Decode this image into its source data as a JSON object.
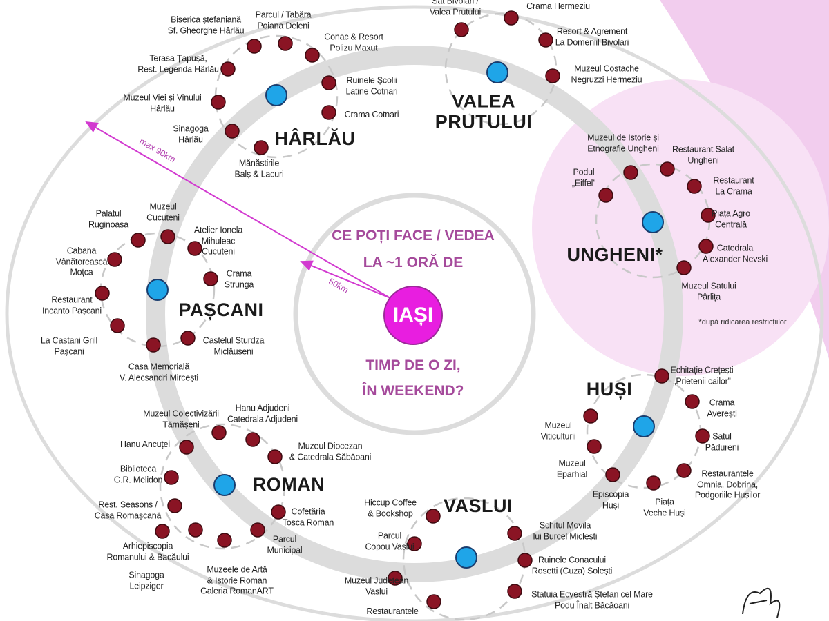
{
  "center": {
    "lines": [
      "CE POȚI FACE / VEDEA",
      "LA ~1 ORĂ DE"
    ],
    "city": "IAȘI",
    "question": [
      "TIMP DE O ZI,",
      "ÎN WEEKEND?"
    ]
  },
  "distances": {
    "max": "max 90km",
    "near": "50km"
  },
  "footnote": "*după ridicarea restricțiilor",
  "towns": [
    {
      "name": "HÂRLĂU",
      "points": [
        "Biserica ștefaniană\nSf. Gheorghe Hârlău",
        "Parcul / Tabăra\nPoiana Deleni",
        "Conac & Resort\nPolizu Maxut",
        "Terasa Țapușă,\nRest. Legenda Hârlău",
        "Muzeul Viei și Vinului\nHârlău",
        "Sinagoga\nHârlău",
        "Mănăstirile\nBalș & Lacuri",
        "Ruinele Școlii\nLatine Cotnari",
        "Crama Cotnari"
      ]
    },
    {
      "name": "VALEA\nPRUTULUI",
      "points": [
        "Sat Bivolari /\nValea Prutului",
        "Crama Hermeziu",
        "Resort & Agrement\nLa Domeniil Bivolari",
        "Muzeul Costache\nNegruzzi Hermeziu"
      ]
    },
    {
      "name": "UNGHENI*",
      "points": [
        "Muzeul de Istorie și\nEtnografie Ungheni",
        "Restaurant Salat\nUngheni",
        "Podul\n„Eiffel”",
        "Restaurant\nLa Crama",
        "Piața Agro\nCentrală",
        "Catedrala\nAlexander Nevski",
        "Muzeul Satului\nPârlița"
      ]
    },
    {
      "name": "PAȘCANI",
      "points": [
        "Palatul\nRuginoasa",
        "Muzeul\nCucuteni",
        "Atelier Ionela\nMihuleac\nCucuteni",
        "Cabana\nVânătorească\nMoțca",
        "Crama\nStrunga",
        "Restaurant\nIncanto Pașcani",
        "La Castani Grill\nPașcani",
        "Castelul Sturdza\nMiclăușeni",
        "Casa Memorială\nV. Alecsandri Mircești"
      ]
    },
    {
      "name": "HUȘI",
      "points": [
        "Echitație Crețești\n„Prietenii cailor”",
        "Crama\nAverești",
        "Satul\nPădureni",
        "Restaurantele\nOmnia, Dobrina,\nPodgoriile Hușilor",
        "Muzeul\nViticulturii",
        "Muzeul\nEparhial",
        "Episcopia\nHuși",
        "Piața\nVeche Huși"
      ]
    },
    {
      "name": "ROMAN",
      "points": [
        "Muzeul Colectivizării\nTămășeni",
        "Hanu Adjudeni\nCatedrala Adjudeni",
        "Hanu Ancuței",
        "Muzeul Diocezan\n& Catedrala Săbăoani",
        "Biblioteca\nG.R. Melidon",
        "Rest. Seasons /\nCasa Romașcană",
        "Cofetăria\nTosca Roman",
        "Arhiepiscopia\nRomanului & Bacăului",
        "Parcul\nMunicipal",
        "Sinagoga\nLeipziger",
        "Muzeele de Artă\n& Istorie Roman\nGaleria RomanART"
      ]
    },
    {
      "name": "VASLUI",
      "points": [
        "Hiccup  Coffee\n& Bookshop",
        "Parcul\nCopou Vaslui",
        "Schitul Movila\nlui Burcel Miclești",
        "Ruinele Conacului\nRosetti (Cuza) Solești",
        "Muzeul Județean\nVaslui",
        "Statuia Ecvestră Ștefan cel Mare\nPodu Înalt Băcăoani",
        "Restaurantele"
      ]
    }
  ]
}
